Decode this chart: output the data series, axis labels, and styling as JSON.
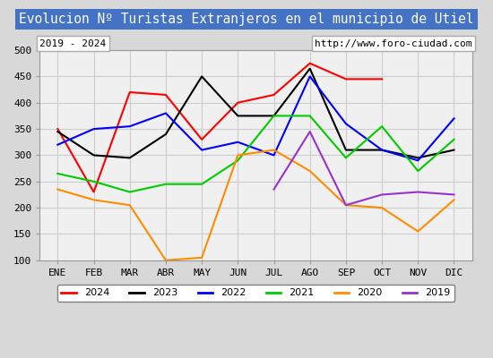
{
  "title": "Evolucion Nº Turistas Extranjeros en el municipio de Utiel",
  "subtitle_left": "2019 - 2024",
  "subtitle_right": "http://www.foro-ciudad.com",
  "months": [
    "ENE",
    "FEB",
    "MAR",
    "ABR",
    "MAY",
    "JUN",
    "JUL",
    "AGO",
    "SEP",
    "OCT",
    "NOV",
    "DIC"
  ],
  "ylim": [
    100,
    500
  ],
  "yticks": [
    100,
    150,
    200,
    250,
    300,
    350,
    400,
    450,
    500
  ],
  "series": {
    "2024": {
      "color": "#ff0000",
      "values": [
        350,
        230,
        420,
        415,
        330,
        400,
        415,
        475,
        445,
        445,
        null,
        null
      ]
    },
    "2023": {
      "color": "#000000",
      "values": [
        345,
        300,
        295,
        340,
        450,
        375,
        375,
        465,
        310,
        310,
        295,
        310
      ]
    },
    "2022": {
      "color": "#0000ff",
      "values": [
        320,
        350,
        355,
        380,
        310,
        325,
        300,
        450,
        360,
        310,
        290,
        370
      ]
    },
    "2021": {
      "color": "#00cc00",
      "values": [
        265,
        250,
        230,
        245,
        245,
        290,
        375,
        375,
        295,
        355,
        270,
        330
      ]
    },
    "2020": {
      "color": "#ff8c00",
      "values": [
        235,
        215,
        205,
        100,
        105,
        300,
        310,
        270,
        205,
        200,
        155,
        215
      ]
    },
    "2019": {
      "color": "#9932cc",
      "values": [
        null,
        null,
        null,
        null,
        null,
        null,
        235,
        345,
        205,
        225,
        230,
        225
      ]
    }
  },
  "title_bg_color": "#4472c4",
  "title_text_color": "#ffffff",
  "plot_bg_color": "#f0f0f0",
  "grid_color": "#cccccc"
}
